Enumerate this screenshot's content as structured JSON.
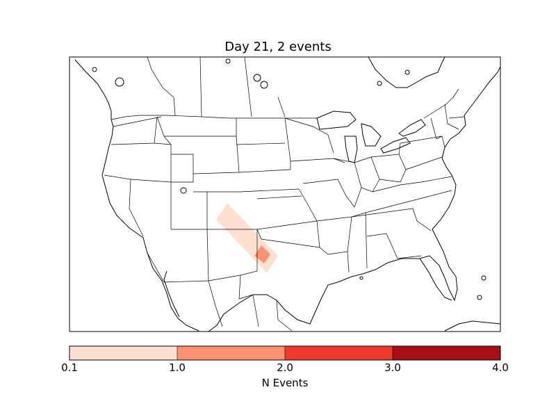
{
  "title": "Day 21, 2 events",
  "colorbar": {
    "label": "N Events",
    "ticks": [
      "0.1",
      "1.0",
      "2.0",
      "3.0",
      "4.0"
    ],
    "colors": [
      "#fee0d2",
      "#fc9272",
      "#ef3b2c",
      "#a50f15"
    ]
  },
  "map": {
    "region": "continental-united-states",
    "background": "#ffffff",
    "boundary_color": "#000000",
    "event_areas": [
      {
        "level": "0.1-1.0",
        "color": "#fee0d2"
      },
      {
        "level": "1.0-2.0",
        "color": "#fc9272"
      }
    ]
  }
}
